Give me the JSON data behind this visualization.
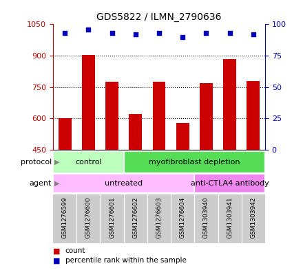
{
  "title": "GDS5822 / ILMN_2790636",
  "samples": [
    "GSM1276599",
    "GSM1276600",
    "GSM1276601",
    "GSM1276602",
    "GSM1276603",
    "GSM1276604",
    "GSM1303940",
    "GSM1303941",
    "GSM1303942"
  ],
  "counts": [
    600,
    905,
    775,
    620,
    775,
    580,
    770,
    885,
    780
  ],
  "percentile_ranks": [
    93,
    96,
    93,
    92,
    93,
    90,
    93,
    93,
    92
  ],
  "ylim_left": [
    450,
    1050
  ],
  "ylim_right": [
    0,
    100
  ],
  "yticks_left": [
    450,
    600,
    750,
    900,
    1050
  ],
  "yticks_right": [
    0,
    25,
    50,
    75,
    100
  ],
  "bar_color": "#cc0000",
  "dot_color": "#0000bb",
  "grid_color": "#000000",
  "protocol_groups": [
    {
      "label": "control",
      "start": 0,
      "end": 3,
      "color": "#bbffbb"
    },
    {
      "label": "myofibroblast depletion",
      "start": 3,
      "end": 9,
      "color": "#55dd55"
    }
  ],
  "agent_groups": [
    {
      "label": "untreated",
      "start": 0,
      "end": 6,
      "color": "#ffbbff"
    },
    {
      "label": "anti-CTLA4 antibody",
      "start": 6,
      "end": 9,
      "color": "#ee88ee"
    }
  ],
  "legend_count_color": "#cc0000",
  "legend_dot_color": "#0000bb",
  "bg_color": "#ffffff",
  "label_area_color": "#cccccc"
}
